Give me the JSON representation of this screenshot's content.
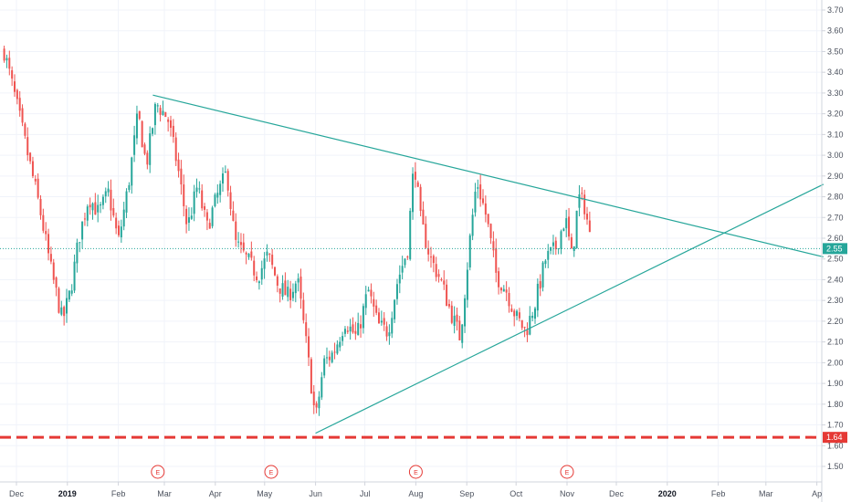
{
  "chart_data": {
    "type": "candlestick",
    "y_axis": {
      "min": 1.47,
      "max": 3.74,
      "ticks": [
        "3.70",
        "3.60",
        "3.50",
        "3.40",
        "3.30",
        "3.20",
        "3.10",
        "3.00",
        "2.90",
        "2.80",
        "2.70",
        "2.60",
        "2.50",
        "2.40",
        "2.30",
        "2.20",
        "2.10",
        "2.00",
        "1.90",
        "1.80",
        "1.70",
        "1.60",
        "1.50"
      ],
      "position": "right"
    },
    "x_axis": {
      "ticks": [
        {
          "label": "Dec",
          "date": "2018-12-01",
          "bold": false
        },
        {
          "label": "2019",
          "date": "2019-01-01",
          "bold": true
        },
        {
          "label": "Feb",
          "date": "2019-02-01",
          "bold": false
        },
        {
          "label": "Mar",
          "date": "2019-03-01",
          "bold": false
        },
        {
          "label": "Apr",
          "date": "2019-04-01",
          "bold": false
        },
        {
          "label": "May",
          "date": "2019-05-01",
          "bold": false
        },
        {
          "label": "Jun",
          "date": "2019-06-01",
          "bold": false
        },
        {
          "label": "Jul",
          "date": "2019-07-01",
          "bold": false
        },
        {
          "label": "Aug",
          "date": "2019-08-01",
          "bold": false
        },
        {
          "label": "Sep",
          "date": "2019-09-01",
          "bold": false
        },
        {
          "label": "Oct",
          "date": "2019-10-01",
          "bold": false
        },
        {
          "label": "Nov",
          "date": "2019-11-01",
          "bold": false
        },
        {
          "label": "Dec",
          "date": "2019-12-01",
          "bold": false
        },
        {
          "label": "2020",
          "date": "2020-01-01",
          "bold": true
        },
        {
          "label": "Feb",
          "date": "2020-02-01",
          "bold": false
        },
        {
          "label": "Mar",
          "date": "2020-03-01",
          "bold": false
        },
        {
          "label": "Ap",
          "date": "2020-04-01",
          "bold": false
        }
      ]
    },
    "grid": true,
    "colors": {
      "up": "#26a69a",
      "down": "#ef5350",
      "trendline": "#26a69a",
      "support": "#e53935",
      "price_line": "#26a69a"
    },
    "price_path": [
      [
        "2018-11-23",
        3.52
      ],
      [
        "2018-12-01",
        3.25
      ],
      [
        "2018-12-08",
        3.0
      ],
      [
        "2018-12-15",
        2.75
      ],
      [
        "2018-12-22",
        2.45
      ],
      [
        "2018-12-29",
        2.2
      ],
      [
        "2019-01-03",
        2.35
      ],
      [
        "2019-01-08",
        2.6
      ],
      [
        "2019-01-14",
        2.8
      ],
      [
        "2019-01-20",
        2.72
      ],
      [
        "2019-01-26",
        2.82
      ],
      [
        "2019-02-01",
        2.58
      ],
      [
        "2019-02-07",
        2.85
      ],
      [
        "2019-02-13",
        3.2
      ],
      [
        "2019-02-18",
        2.95
      ],
      [
        "2019-02-24",
        3.25
      ],
      [
        "2019-03-03",
        3.18
      ],
      [
        "2019-03-09",
        2.95
      ],
      [
        "2019-03-15",
        2.65
      ],
      [
        "2019-03-21",
        2.85
      ],
      [
        "2019-03-27",
        2.65
      ],
      [
        "2019-04-02",
        2.8
      ],
      [
        "2019-04-08",
        2.92
      ],
      [
        "2019-04-13",
        2.58
      ],
      [
        "2019-04-20",
        2.5
      ],
      [
        "2019-04-27",
        2.42
      ],
      [
        "2019-05-03",
        2.52
      ],
      [
        "2019-05-09",
        2.38
      ],
      [
        "2019-05-15",
        2.32
      ],
      [
        "2019-05-21",
        2.4
      ],
      [
        "2019-05-27",
        2.05
      ],
      [
        "2019-06-01",
        1.72
      ],
      [
        "2019-06-06",
        2.0
      ],
      [
        "2019-06-12",
        2.05
      ],
      [
        "2019-06-19",
        2.2
      ],
      [
        "2019-06-26",
        2.12
      ],
      [
        "2019-07-03",
        2.35
      ],
      [
        "2019-07-09",
        2.18
      ],
      [
        "2019-07-15",
        2.15
      ],
      [
        "2019-07-21",
        2.4
      ],
      [
        "2019-07-27",
        2.55
      ],
      [
        "2019-07-31",
        2.98
      ],
      [
        "2019-08-04",
        2.68
      ],
      [
        "2019-08-10",
        2.5
      ],
      [
        "2019-08-16",
        2.4
      ],
      [
        "2019-08-22",
        2.25
      ],
      [
        "2019-08-28",
        2.12
      ],
      [
        "2019-09-03",
        2.6
      ],
      [
        "2019-09-07",
        2.88
      ],
      [
        "2019-09-13",
        2.7
      ],
      [
        "2019-09-19",
        2.42
      ],
      [
        "2019-09-25",
        2.35
      ],
      [
        "2019-10-01",
        2.22
      ],
      [
        "2019-10-07",
        2.15
      ],
      [
        "2019-10-13",
        2.3
      ],
      [
        "2019-10-19",
        2.5
      ],
      [
        "2019-10-25",
        2.55
      ],
      [
        "2019-10-31",
        2.7
      ],
      [
        "2019-11-04",
        2.5
      ],
      [
        "2019-11-08",
        2.8
      ],
      [
        "2019-11-12",
        2.75
      ],
      [
        "2019-11-16",
        2.55
      ]
    ],
    "trendlines": [
      {
        "from": [
          "2019-02-22",
          3.29
        ],
        "to": [
          "2020-04-05",
          2.51
        ]
      },
      {
        "from": [
          "2019-06-01",
          1.66
        ],
        "to": [
          "2020-04-05",
          2.86
        ]
      }
    ],
    "price_line": {
      "value": 2.55,
      "label": "2.55"
    },
    "support_line": {
      "value": 1.64,
      "label": "1.64"
    },
    "earnings": [
      {
        "label": "E",
        "date": "2019-02-25"
      },
      {
        "label": "E",
        "date": "2019-05-05"
      },
      {
        "label": "E",
        "date": "2019-08-01"
      },
      {
        "label": "E",
        "date": "2019-11-01"
      }
    ]
  }
}
